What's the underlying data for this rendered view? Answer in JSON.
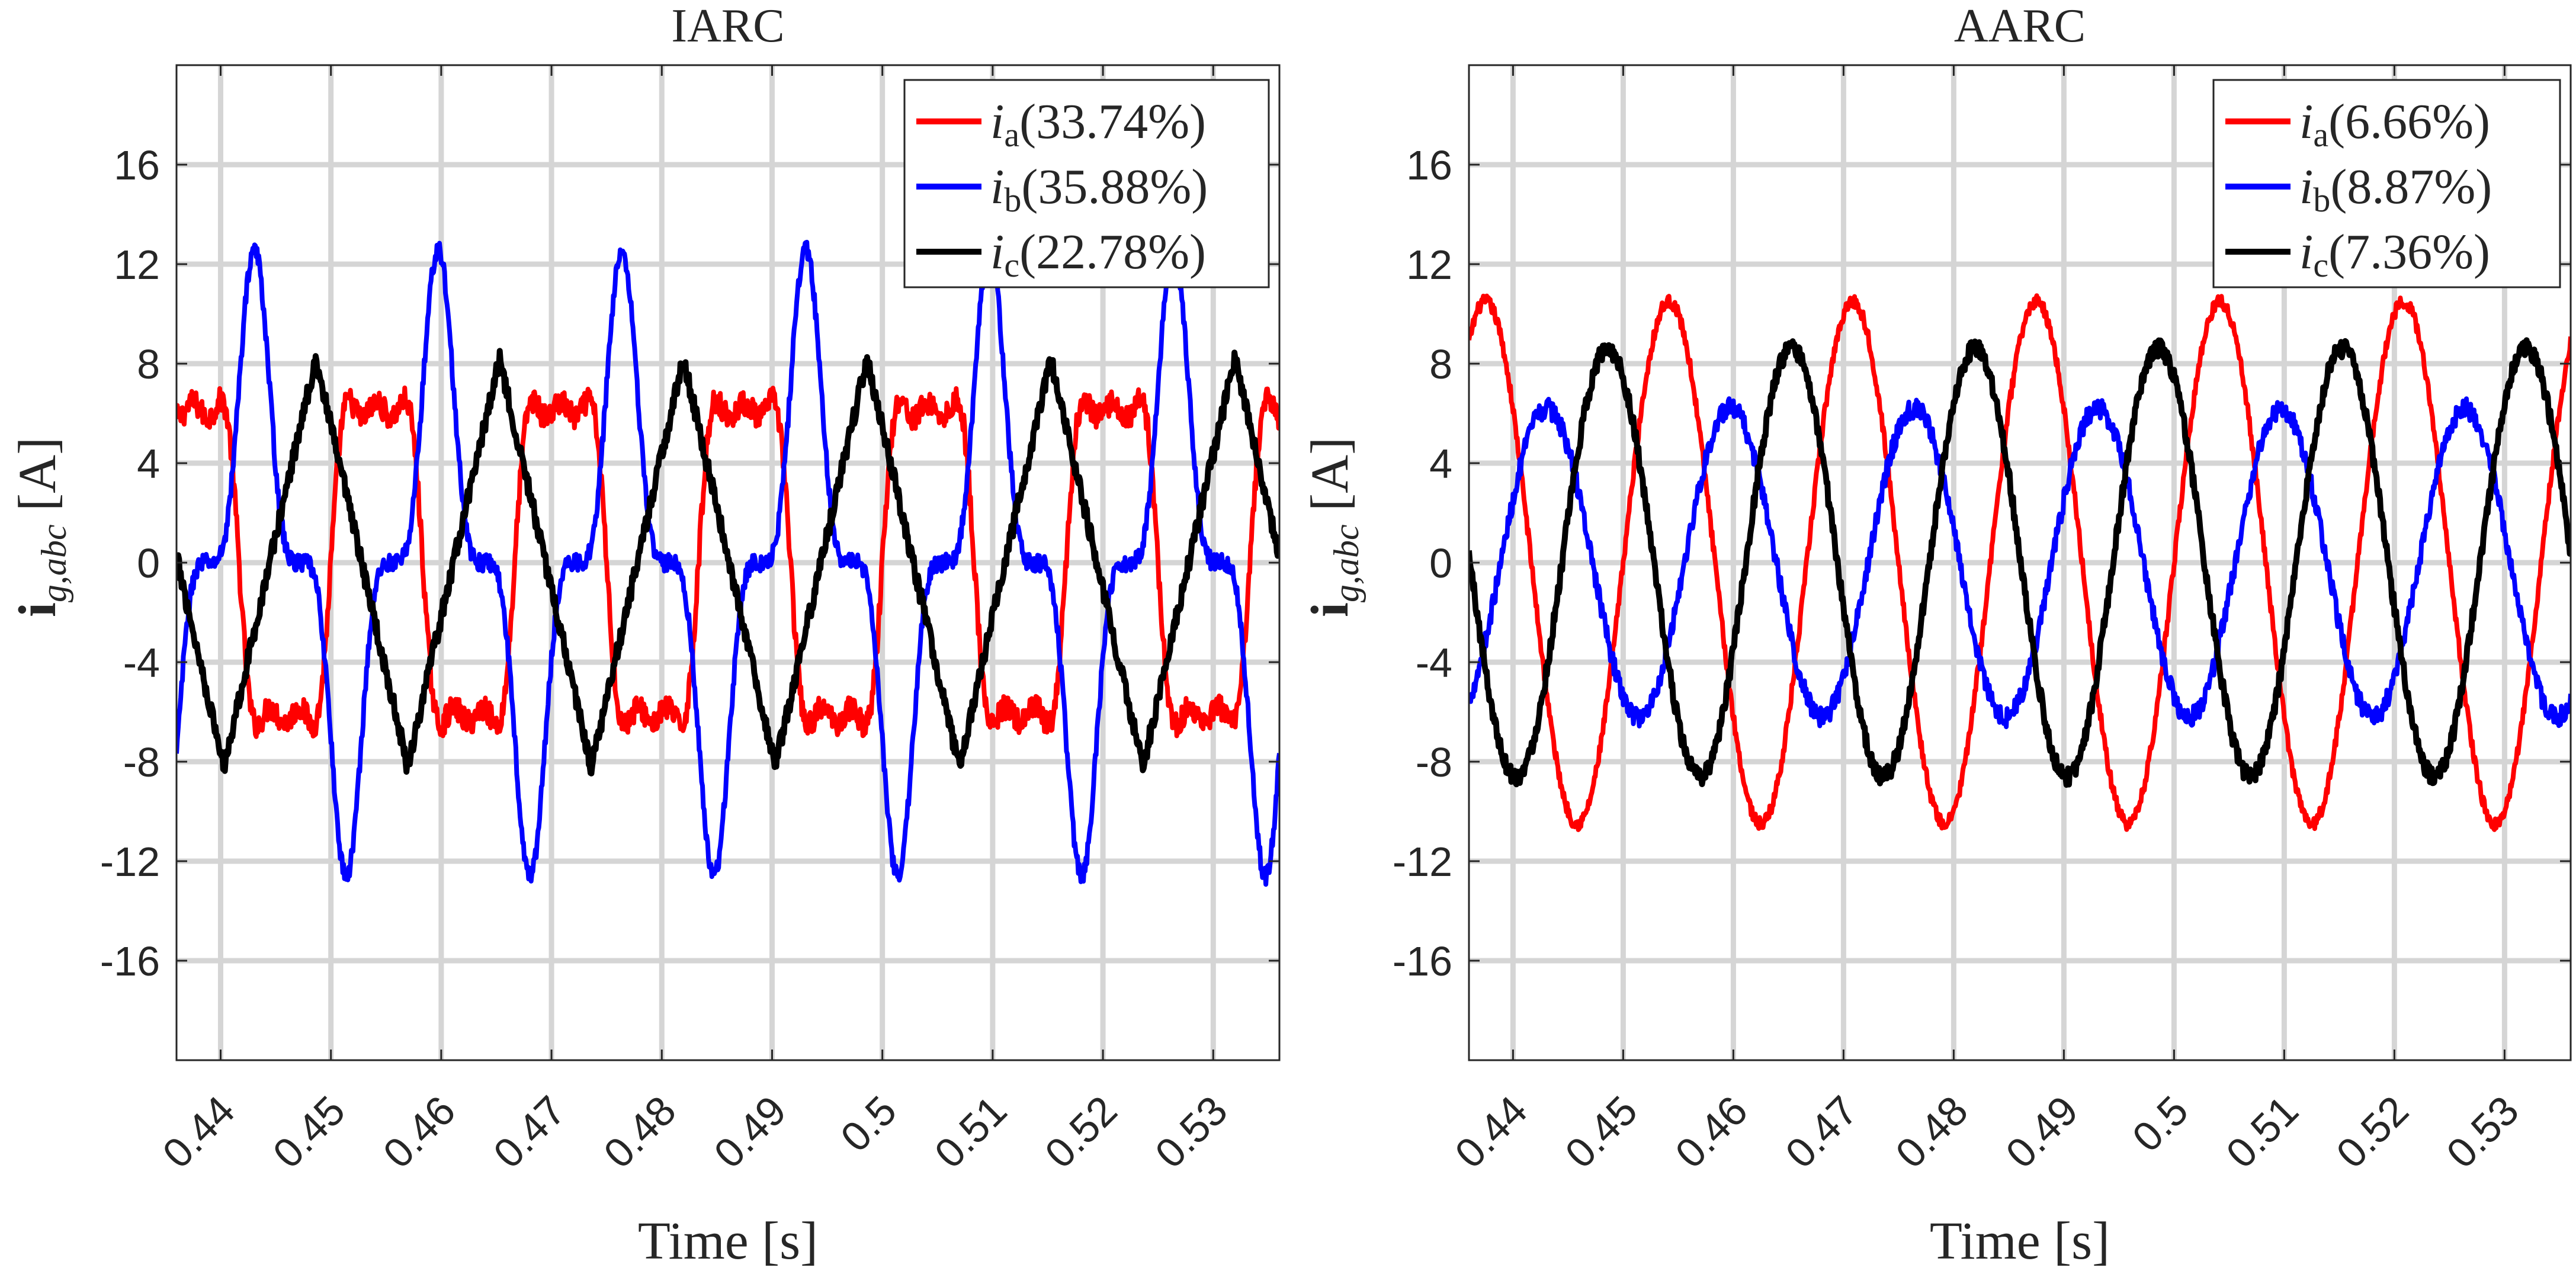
{
  "chart_data": [
    {
      "type": "line",
      "title": "IARC",
      "xlabel": "Time",
      "xlabel_unit": "[s]",
      "ylabel": "i",
      "ylabel_sub": "g,abc",
      "ylabel_unit": "[A]",
      "xlim": [
        0.436,
        0.536
      ],
      "ylim": [
        -20,
        20
      ],
      "xticks": [
        0.44,
        0.45,
        0.46,
        0.47,
        0.48,
        0.49,
        0.5,
        0.51,
        0.52,
        0.53
      ],
      "xtick_labels": [
        "0.44",
        "0.45",
        "0.46",
        "0.47",
        "0.48",
        "0.49",
        "0.5",
        "0.51",
        "0.52",
        "0.53"
      ],
      "yticks": [
        -16,
        -12,
        -8,
        -4,
        0,
        4,
        8,
        12,
        16
      ],
      "ytick_labels": [
        "-16",
        "-12",
        "-8",
        "-4",
        "0",
        "4",
        "8",
        "12",
        "16"
      ],
      "grid": true,
      "legend_position": "top-right",
      "series": [
        {
          "name": "(33.74%)",
          "symbol": "i",
          "sub": "a",
          "color": "#ff0000",
          "shape": "distorted",
          "amplitude": 8.8,
          "phase_deg": 0,
          "noise": 0.5
        },
        {
          "name": "(35.88%)",
          "symbol": "i",
          "sub": "b",
          "color": "#0000ff",
          "shape": "spiky",
          "amplitude": 12.6,
          "phase_deg": -120,
          "noise": 0.35
        },
        {
          "name": "(22.78%)",
          "symbol": "i",
          "sub": "c",
          "color": "#000000",
          "shape": "triangular",
          "amplitude": 8.2,
          "phase_deg": 120,
          "noise": 0.4
        }
      ]
    },
    {
      "type": "line",
      "title": "AARC",
      "xlabel": "Time",
      "xlabel_unit": "[s]",
      "ylabel": "i",
      "ylabel_sub": "g,abc",
      "ylabel_unit": "[A]",
      "xlim": [
        0.436,
        0.536
      ],
      "ylim": [
        -20,
        20
      ],
      "xticks": [
        0.44,
        0.45,
        0.46,
        0.47,
        0.48,
        0.49,
        0.5,
        0.51,
        0.52,
        0.53
      ],
      "xtick_labels": [
        "0.44",
        "0.45",
        "0.46",
        "0.47",
        "0.48",
        "0.49",
        "0.5",
        "0.51",
        "0.52",
        "0.53"
      ],
      "yticks": [
        -16,
        -12,
        -8,
        -4,
        0,
        4,
        8,
        12,
        16
      ],
      "ytick_labels": [
        "-16",
        "-12",
        "-8",
        "-4",
        "0",
        "4",
        "8",
        "12",
        "16"
      ],
      "grid": true,
      "legend_position": "top-right",
      "series": [
        {
          "name": "(6.66%)",
          "symbol": "i",
          "sub": "a",
          "color": "#ff0000",
          "shape": "sine",
          "amplitude": 10.5,
          "phase_deg": 0,
          "noise": 0.25
        },
        {
          "name": "(8.87%)",
          "symbol": "i",
          "sub": "b",
          "color": "#0000ff",
          "shape": "sine",
          "amplitude": 6.2,
          "phase_deg": -120,
          "noise": 0.4
        },
        {
          "name": "(7.36%)",
          "symbol": "i",
          "sub": "c",
          "color": "#000000",
          "shape": "sine",
          "amplitude": 8.6,
          "phase_deg": 120,
          "noise": 0.35
        }
      ]
    }
  ]
}
